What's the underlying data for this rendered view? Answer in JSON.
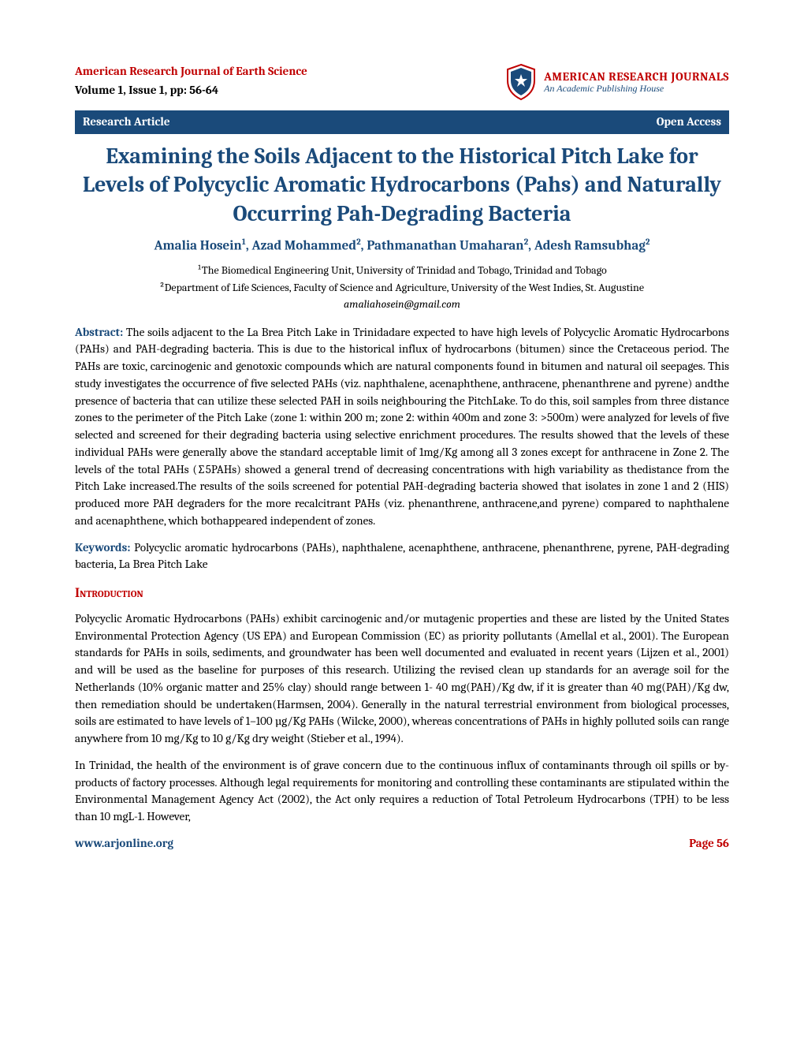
{
  "header": {
    "journal_name": "American Research Journal of Earth Science",
    "volume_info": "Volume 1, Issue 1, pp: 56-64",
    "logo": {
      "title": "AMERICAN RESEARCH JOURNALS",
      "tagline": "An Academic Publishing House"
    }
  },
  "bar": {
    "left": "Research Article",
    "right": "Open Access"
  },
  "title": "Examining the Soils Adjacent to the Historical Pitch Lake for Levels of Polycyclic Aromatic Hydrocarbons (Pahs) and Naturally Occurring Pah-Degrading Bacteria",
  "authors_html": "Amalia Hosein<sup>1</sup>, Azad Mohammed<sup>2</sup>, Pathmanathan Umaharan<sup>2</sup>, Adesh Ramsubhag<sup>2</sup>",
  "affiliations": {
    "line1": "¹The Biomedical Engineering Unit, University of Trinidad and Tobago, Trinidad and Tobago",
    "line2": "²Department of Life Sciences, Faculty of Science and Agriculture, University of the West Indies, St. Augustine"
  },
  "email": "amaliahosein@gmail.com",
  "abstract": {
    "label": "Abstract:",
    "text": " The soils adjacent to the La Brea Pitch Lake in Trinidadare expected to have high levels of Polycyclic Aromatic Hydrocarbons (PAHs) and PAH-degrading bacteria. This is due to the historical influx of hydrocarbons (bitumen) since the Cretaceous period. The PAHs are toxic, carcinogenic and genotoxic compounds which are natural components found in bitumen and natural oil seepages. This study investigates the occurrence of five selected PAHs (viz. naphthalene, acenaphthene, anthracene, phenanthrene and pyrene) andthe presence of bacteria that can utilize these selected PAH in soils neighbouring the PitchLake. To do this, soil samples from three distance zones to the perimeter of the Pitch Lake (zone 1: within 200 m; zone 2: within 400m and zone 3: >500m) were analyzed for levels of five selected and screened for their degrading bacteria using selective enrichment procedures. The results showed that the levels of these individual PAHs were generally above the standard acceptable limit of 1mg/Kg among all 3 zones except for anthracene in Zone 2. The levels of the total PAHs (∑5PAHs) showed a general trend of decreasing concentrations with high variability as thedistance from the Pitch Lake increased.The results of the soils screened for potential PAH-degrading bacteria showed that isolates in zone 1 and 2 (HIS) produced more PAH degraders for the more recalcitrant PAHs (viz. phenanthrene, anthracene,and pyrene) compared to naphthalene and acenaphthene, which bothappeared independent of zones."
  },
  "keywords": {
    "label": "Keywords:",
    "text": " Polycyclic aromatic hydrocarbons (PAHs), naphthalene, acenaphthene, anthracene, phenanthrene, pyrene, PAH-degrading bacteria, La Brea Pitch Lake"
  },
  "introduction": {
    "heading": "Introduction",
    "p1": "Polycyclic Aromatic Hydrocarbons (PAHs) exhibit carcinogenic and/or mutagenic properties and these are listed by the United States Environmental Protection Agency (US EPA) and European Commission (EC) as priority pollutants (Amellal et al., 2001). The European standards for PAHs in soils, sediments, and groundwater has been well documented and evaluated in recent years (Lijzen et al., 2001) and will be used as the baseline for purposes of this research. Utilizing the revised clean up standards for an average soil for the Netherlands (10% organic matter and 25% clay) should range between 1- 40 mg(PAH)/Kg dw, if it is greater than 40 mg(PAH)/Kg dw, then remediation should be undertaken(Harmsen, 2004). Generally in the natural terrestrial environment from biological processes, soils are estimated to have levels of 1–100 µg/Kg PAHs (Wilcke, 2000), whereas concentrations of PAHs in highly polluted soils can range anywhere from 10 mg/Kg to 10 g/Kg dry weight (Stieber et al., 1994).",
    "p2": "In Trinidad, the health of the environment is of grave concern due to the continuous influx of contaminants through oil spills or by-products of factory processes. Although legal requirements for monitoring and controlling these contaminants are stipulated within the Environmental Management Agency Act (2002), the Act only requires a reduction of Total Petroleum Hydrocarbons (TPH) to be less than 10 mgL-1. However,"
  },
  "footer": {
    "url": "www.arjonline.org",
    "page": "Page 56"
  },
  "colors": {
    "red": "#c00000",
    "blue": "#1a4a7a",
    "text": "#000000",
    "white": "#ffffff"
  }
}
